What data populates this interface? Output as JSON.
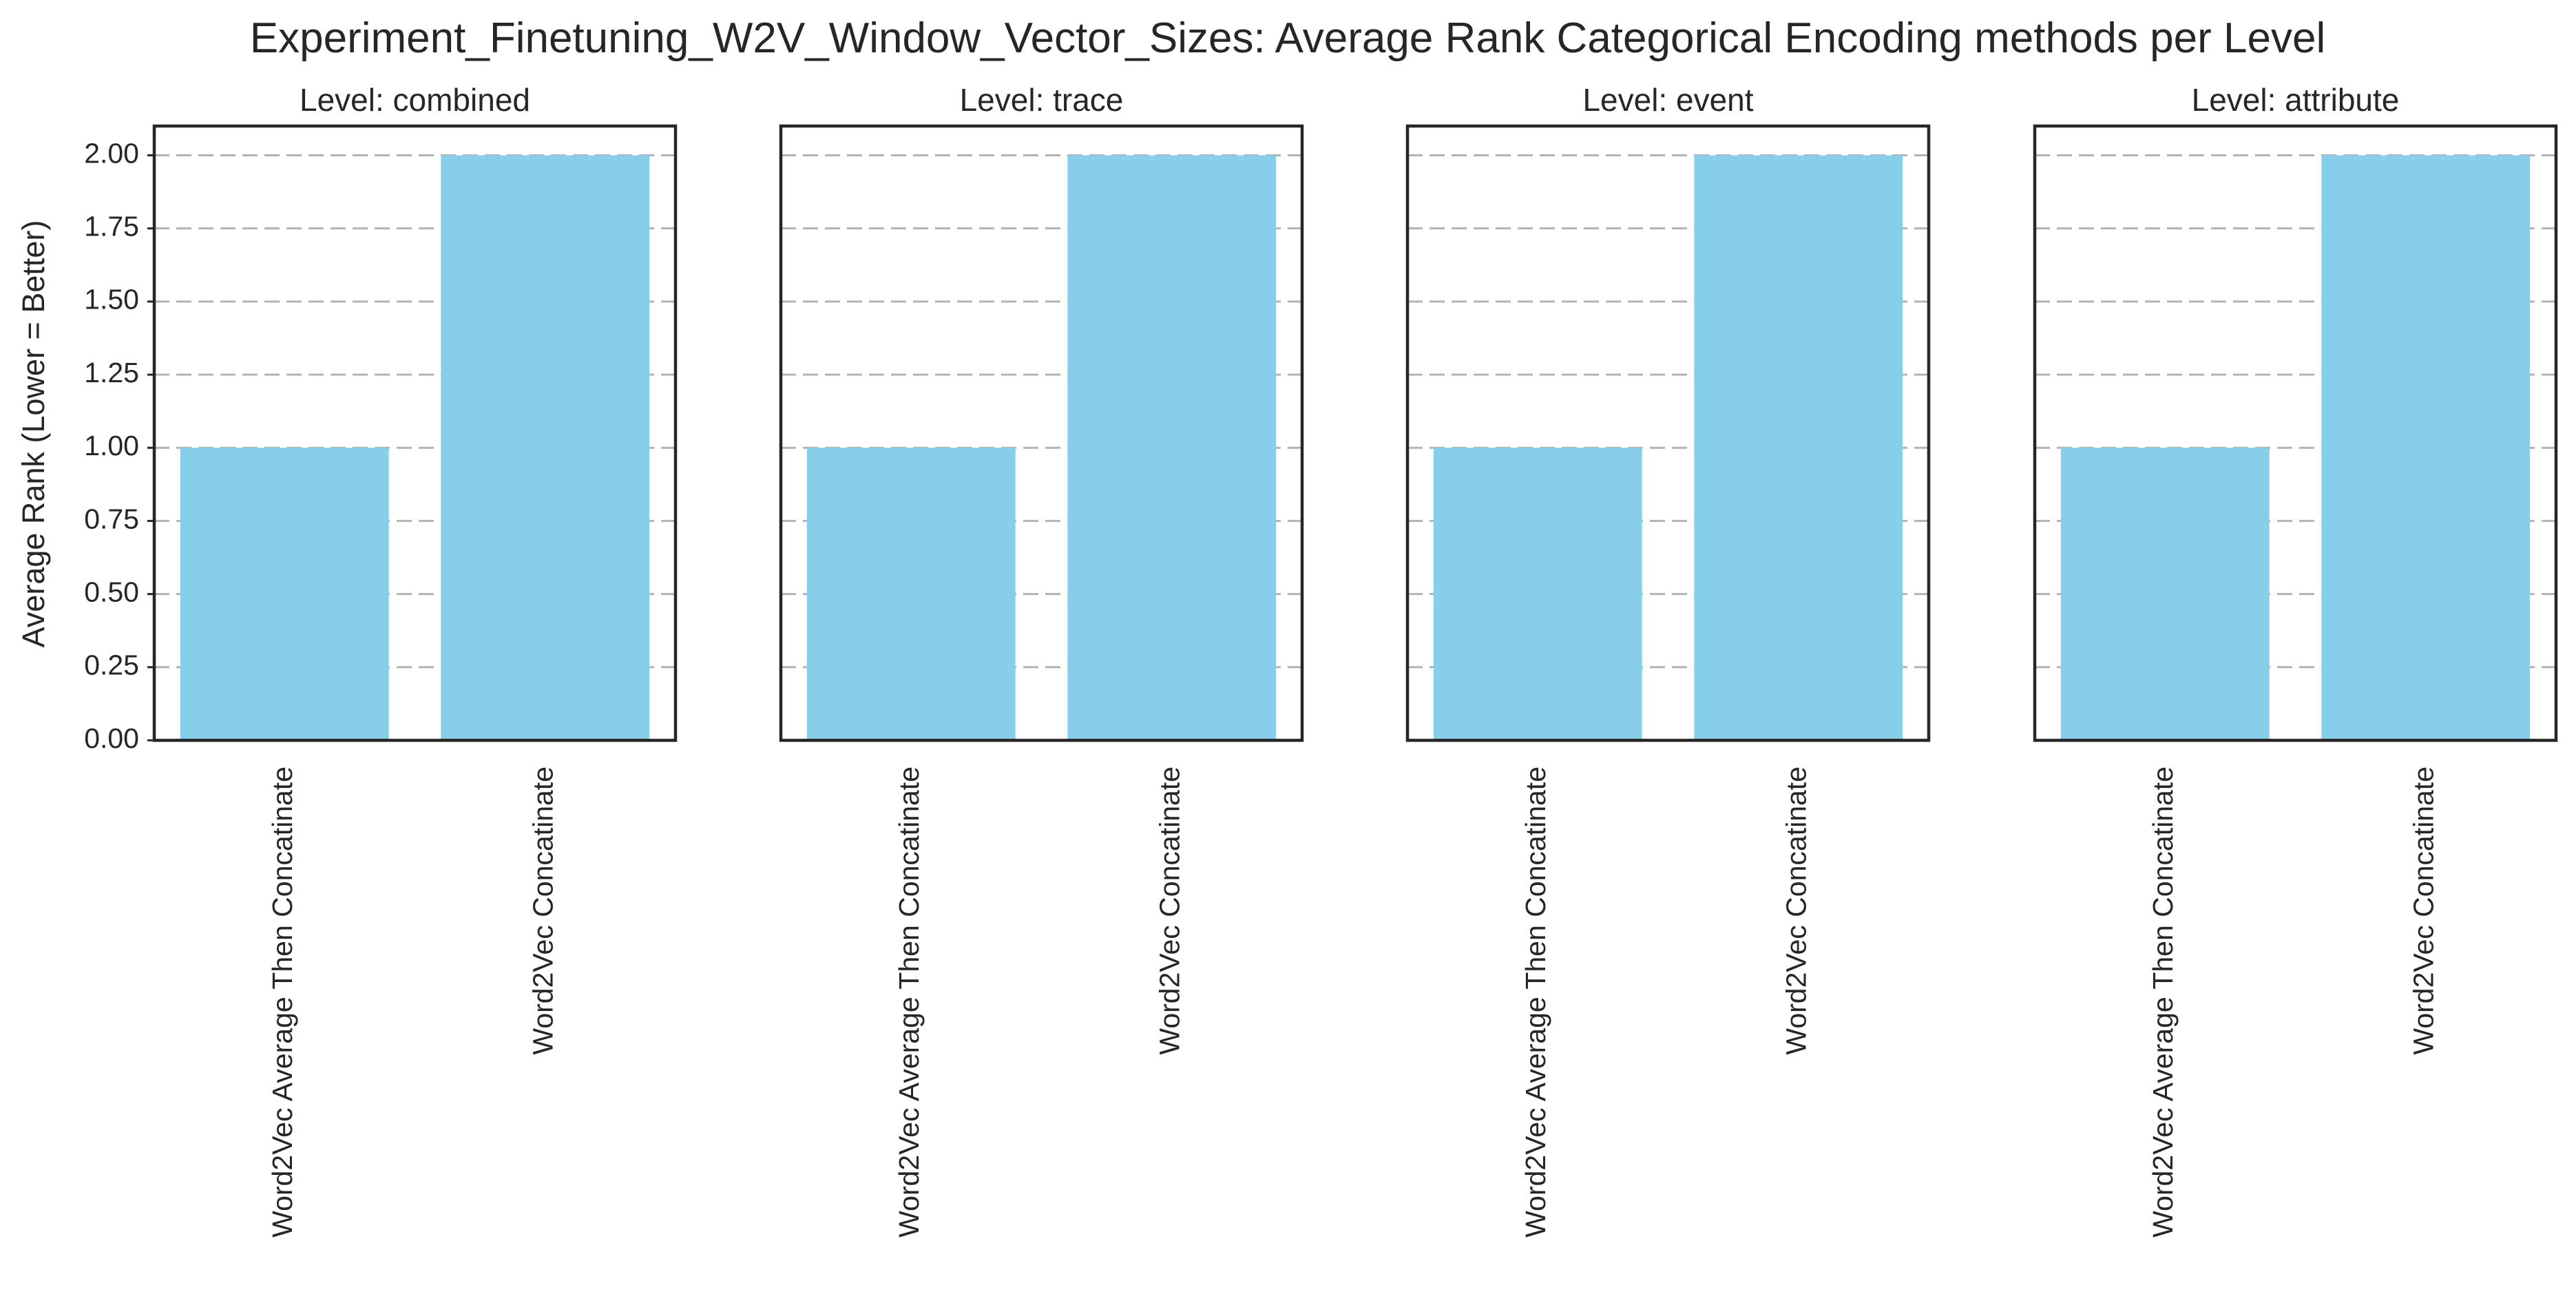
{
  "chart_data": {
    "type": "bar",
    "title": "Experiment_Finetuning_W2V_Window_Vector_Sizes: Average Rank Categorical Encoding methods per Level",
    "ylabel": "Average Rank (Lower = Better)",
    "xlabel": "",
    "ylim": [
      0,
      2.1
    ],
    "yticks": [
      "0.00",
      "0.25",
      "0.50",
      "0.75",
      "1.00",
      "1.25",
      "1.50",
      "1.75",
      "2.00"
    ],
    "ytick_values": [
      0,
      0.25,
      0.5,
      0.75,
      1.0,
      1.25,
      1.5,
      1.75,
      2.0
    ],
    "grid": "horizontal dashed",
    "bar_color": "#87ceeb",
    "shared_y": true,
    "panels": [
      {
        "title": "Level: combined",
        "categories": [
          "Word2Vec Average Then Concatinate",
          "Word2Vec Concatinate"
        ],
        "values": [
          1.0,
          2.0
        ]
      },
      {
        "title": "Level: trace",
        "categories": [
          "Word2Vec Average Then Concatinate",
          "Word2Vec Concatinate"
        ],
        "values": [
          1.0,
          2.0
        ]
      },
      {
        "title": "Level: event",
        "categories": [
          "Word2Vec Average Then Concatinate",
          "Word2Vec Concatinate"
        ],
        "values": [
          1.0,
          2.0
        ]
      },
      {
        "title": "Level: attribute",
        "categories": [
          "Word2Vec Average Then Concatinate",
          "Word2Vec Concatinate"
        ],
        "values": [
          1.0,
          2.0
        ]
      }
    ]
  }
}
